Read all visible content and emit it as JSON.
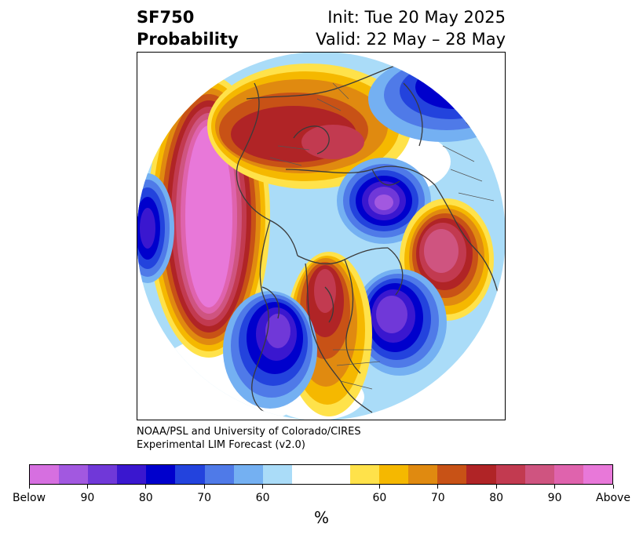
{
  "title": {
    "left_line1": "SF750",
    "left_line2": "Probability",
    "right_line1": "Init: Tue 20 May 2025",
    "right_line2": "Valid: 22 May – 28 May"
  },
  "credits": {
    "line1": "NOAA/PSL and University of Colorado/CIRES",
    "line2": "Experimental LIM Forecast (v2.0)"
  },
  "colorbar": {
    "unit": "%",
    "colors": [
      "#d66fe0",
      "#a258e0",
      "#7038d8",
      "#3a17cf",
      "#0000cc",
      "#2343dd",
      "#4f7ae8",
      "#74b0f2",
      "#aadcf8",
      "#ffffff",
      "#ffffff",
      "#ffe24a",
      "#f5b800",
      "#e08a10",
      "#c85216",
      "#b02426",
      "#c23a50",
      "#cf5480",
      "#df63ad",
      "#e878d9"
    ],
    "tick_labels": [
      "Below",
      "90",
      "80",
      "70",
      "60",
      "60",
      "70",
      "80",
      "90",
      "Above"
    ]
  }
}
